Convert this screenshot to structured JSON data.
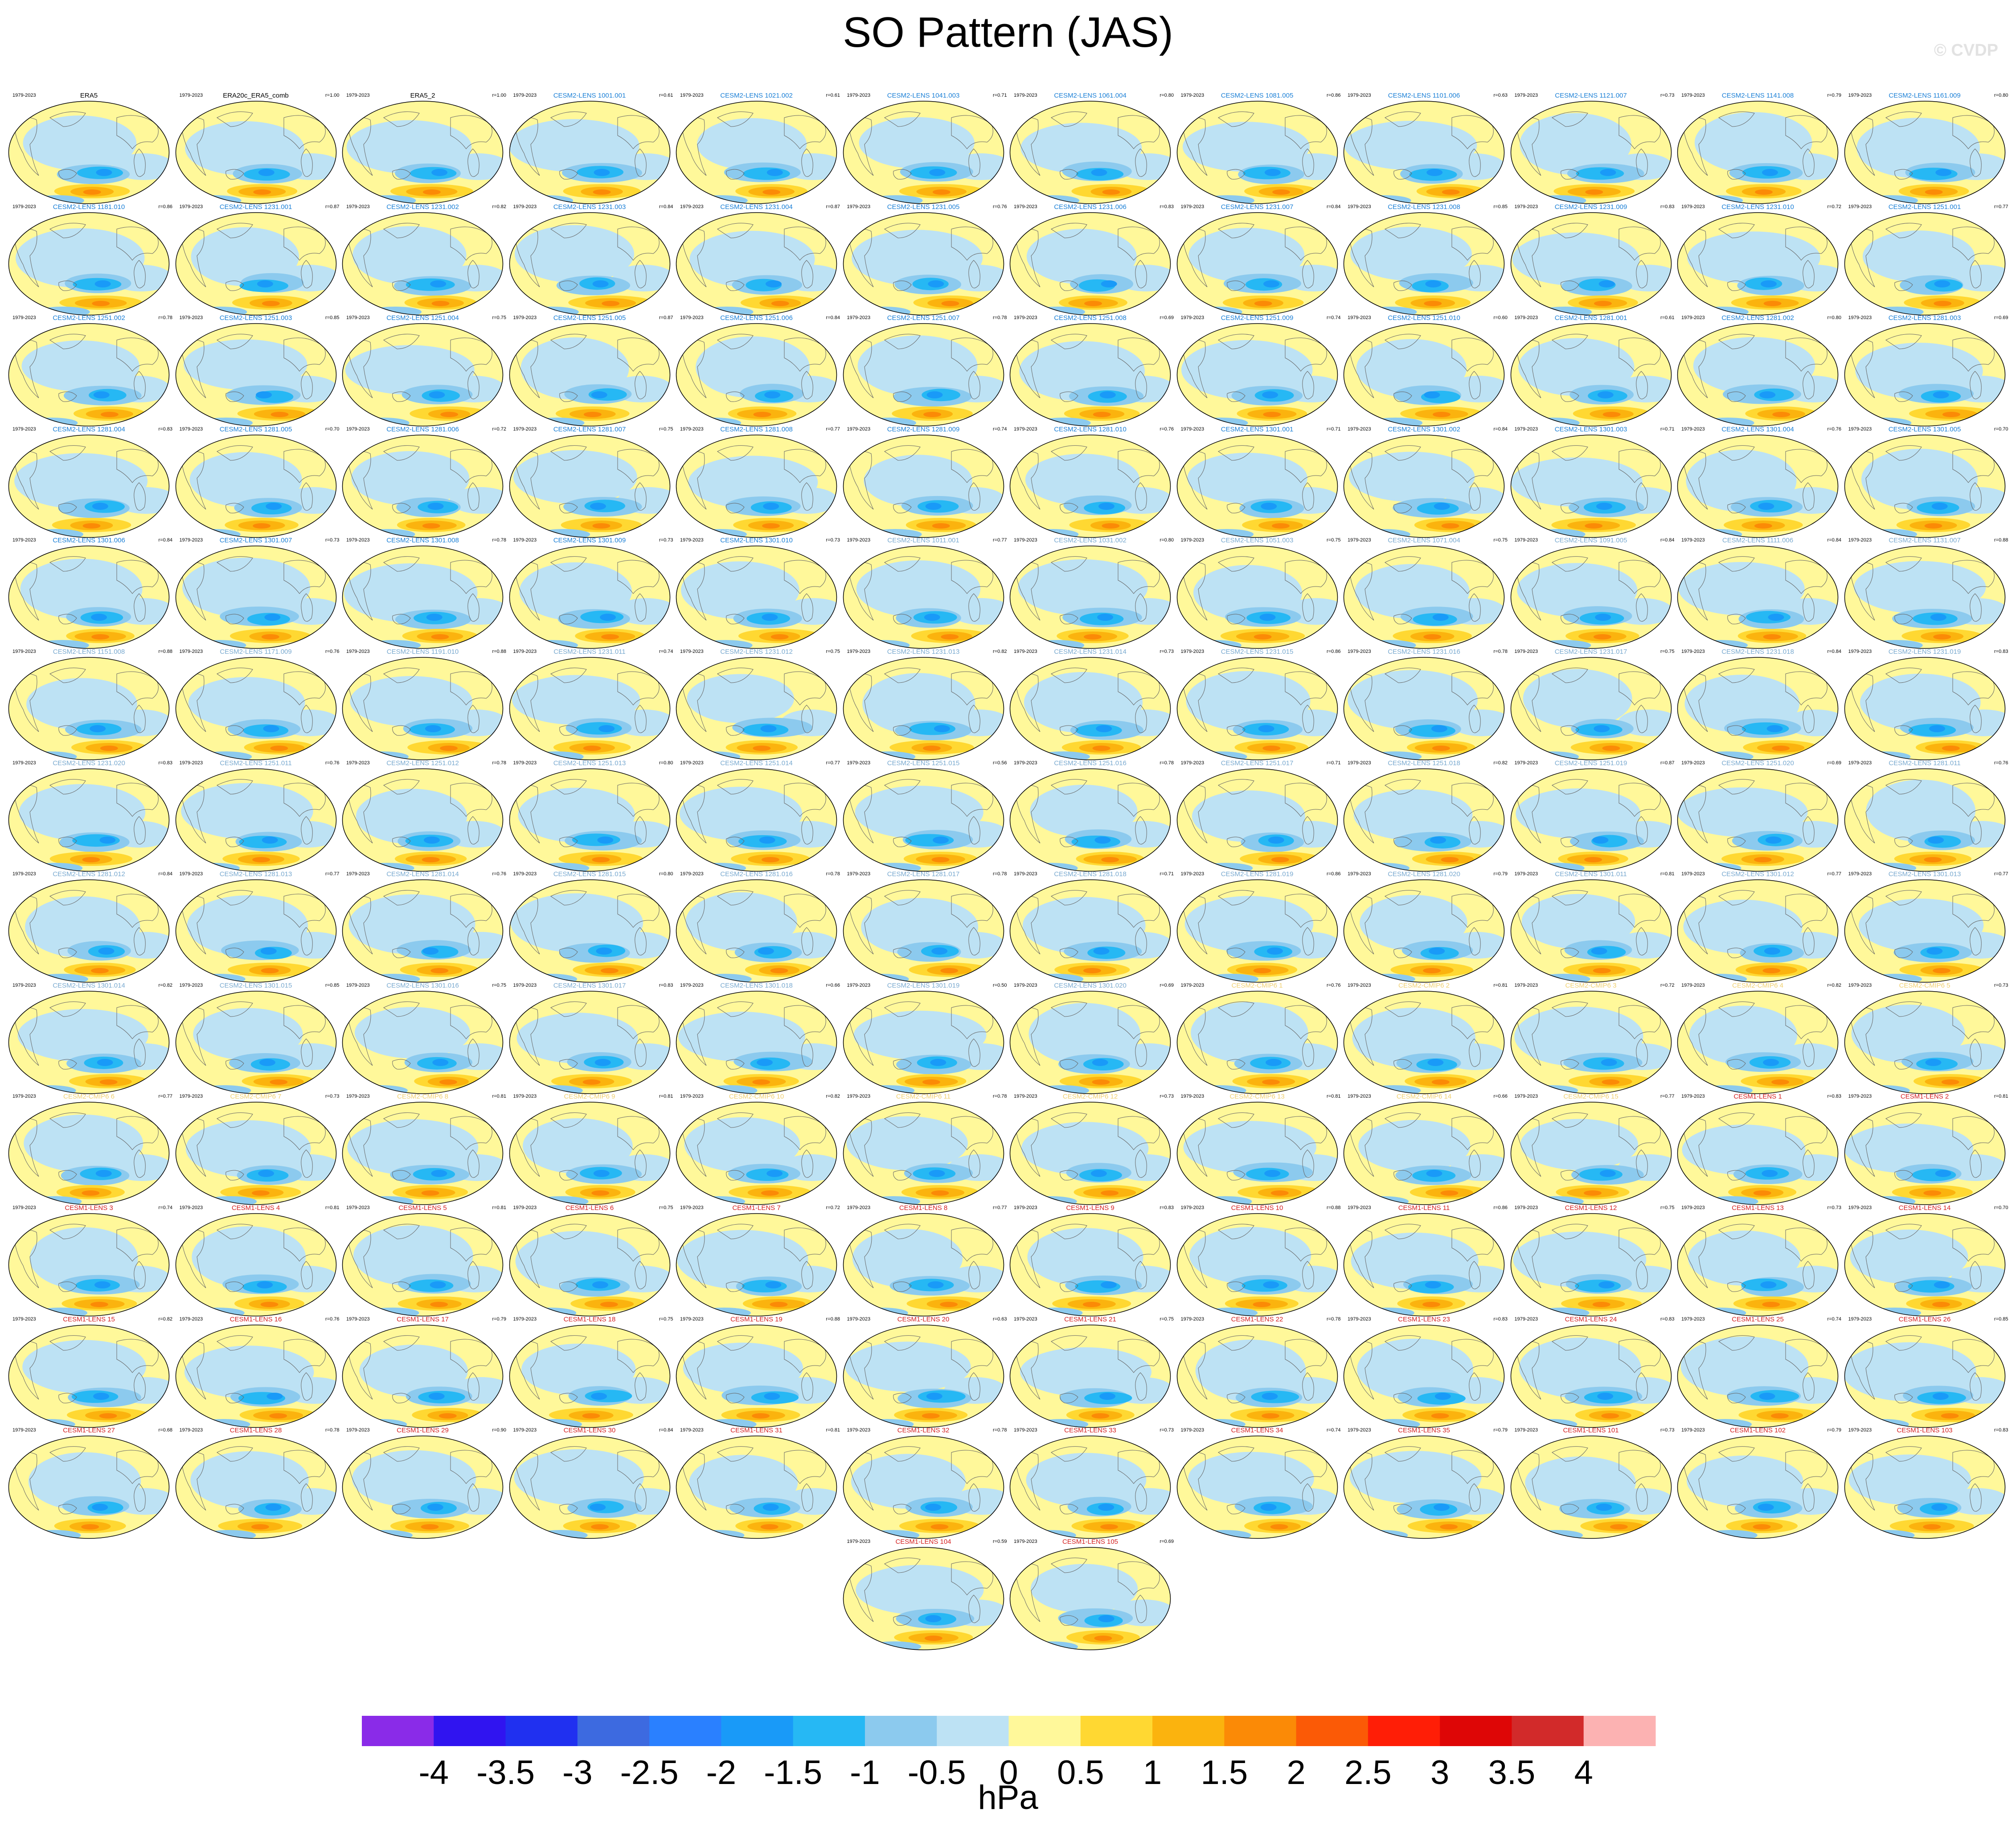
{
  "title": "SO Pattern (JAS)",
  "watermark": "© CVDP",
  "chart_data": {
    "type": "heatmap",
    "description_units": "hPa",
    "period_label": "1979-2023",
    "panels": [
      {
        "name": "ERA5",
        "group": "obs",
        "r": ""
      },
      {
        "name": "ERA20c_ERA5_comb",
        "group": "obs",
        "r": "r=1.00"
      },
      {
        "name": "ERA5_2",
        "group": "obs",
        "r": "r=1.00"
      },
      {
        "name": "CESM2-LENS 1001.001",
        "group": "cesm2",
        "r": "r=0.61"
      },
      {
        "name": "CESM2-LENS 1021.002",
        "group": "cesm2",
        "r": "r=0.61"
      },
      {
        "name": "CESM2-LENS 1041.003",
        "group": "cesm2",
        "r": "r=0.71"
      },
      {
        "name": "CESM2-LENS 1061.004",
        "group": "cesm2",
        "r": "r=0.80"
      },
      {
        "name": "CESM2-LENS 1081.005",
        "group": "cesm2",
        "r": "r=0.86"
      },
      {
        "name": "CESM2-LENS 1101.006",
        "group": "cesm2",
        "r": "r=0.63"
      },
      {
        "name": "CESM2-LENS 1121.007",
        "group": "cesm2",
        "r": "r=0.73"
      },
      {
        "name": "CESM2-LENS 1141.008",
        "group": "cesm2",
        "r": "r=0.79"
      },
      {
        "name": "CESM2-LENS 1161.009",
        "group": "cesm2",
        "r": "r=0.80"
      },
      {
        "name": "CESM2-LENS 1181.010",
        "group": "cesm2",
        "r": "r=0.86"
      },
      {
        "name": "CESM2-LENS 1231.001",
        "group": "cesm2",
        "r": "r=0.87"
      },
      {
        "name": "CESM2-LENS 1231.002",
        "group": "cesm2",
        "r": "r=0.82"
      },
      {
        "name": "CESM2-LENS 1231.003",
        "group": "cesm2",
        "r": "r=0.84"
      },
      {
        "name": "CESM2-LENS 1231.004",
        "group": "cesm2",
        "r": "r=0.87"
      },
      {
        "name": "CESM2-LENS 1231.005",
        "group": "cesm2",
        "r": "r=0.76"
      },
      {
        "name": "CESM2-LENS 1231.006",
        "group": "cesm2",
        "r": "r=0.83"
      },
      {
        "name": "CESM2-LENS 1231.007",
        "group": "cesm2",
        "r": "r=0.84"
      },
      {
        "name": "CESM2-LENS 1231.008",
        "group": "cesm2",
        "r": "r=0.85"
      },
      {
        "name": "CESM2-LENS 1231.009",
        "group": "cesm2",
        "r": "r=0.83"
      },
      {
        "name": "CESM2-LENS 1231.010",
        "group": "cesm2",
        "r": "r=0.72"
      },
      {
        "name": "CESM2-LENS 1251.001",
        "group": "cesm2",
        "r": "r=0.77"
      },
      {
        "name": "CESM2-LENS 1251.002",
        "group": "cesm2",
        "r": "r=0.78"
      },
      {
        "name": "CESM2-LENS 1251.003",
        "group": "cesm2",
        "r": "r=0.85"
      },
      {
        "name": "CESM2-LENS 1251.004",
        "group": "cesm2",
        "r": "r=0.75"
      },
      {
        "name": "CESM2-LENS 1251.005",
        "group": "cesm2",
        "r": "r=0.87"
      },
      {
        "name": "CESM2-LENS 1251.006",
        "group": "cesm2",
        "r": "r=0.84"
      },
      {
        "name": "CESM2-LENS 1251.007",
        "group": "cesm2",
        "r": "r=0.78"
      },
      {
        "name": "CESM2-LENS 1251.008",
        "group": "cesm2",
        "r": "r=0.69"
      },
      {
        "name": "CESM2-LENS 1251.009",
        "group": "cesm2",
        "r": "r=0.74"
      },
      {
        "name": "CESM2-LENS 1251.010",
        "group": "cesm2",
        "r": "r=0.60"
      },
      {
        "name": "CESM2-LENS 1281.001",
        "group": "cesm2",
        "r": "r=0.61"
      },
      {
        "name": "CESM2-LENS 1281.002",
        "group": "cesm2",
        "r": "r=0.80"
      },
      {
        "name": "CESM2-LENS 1281.003",
        "group": "cesm2",
        "r": "r=0.69"
      },
      {
        "name": "CESM2-LENS 1281.004",
        "group": "cesm2",
        "r": "r=0.83"
      },
      {
        "name": "CESM2-LENS 1281.005",
        "group": "cesm2",
        "r": "r=0.70"
      },
      {
        "name": "CESM2-LENS 1281.006",
        "group": "cesm2",
        "r": "r=0.72"
      },
      {
        "name": "CESM2-LENS 1281.007",
        "group": "cesm2",
        "r": "r=0.75"
      },
      {
        "name": "CESM2-LENS 1281.008",
        "group": "cesm2",
        "r": "r=0.77"
      },
      {
        "name": "CESM2-LENS 1281.009",
        "group": "cesm2",
        "r": "r=0.74"
      },
      {
        "name": "CESM2-LENS 1281.010",
        "group": "cesm2",
        "r": "r=0.76"
      },
      {
        "name": "CESM2-LENS 1301.001",
        "group": "cesm2",
        "r": "r=0.71"
      },
      {
        "name": "CESM2-LENS 1301.002",
        "group": "cesm2",
        "r": "r=0.84"
      },
      {
        "name": "CESM2-LENS 1301.003",
        "group": "cesm2",
        "r": "r=0.71"
      },
      {
        "name": "CESM2-LENS 1301.004",
        "group": "cesm2",
        "r": "r=0.76"
      },
      {
        "name": "CESM2-LENS 1301.005",
        "group": "cesm2",
        "r": "r=0.70"
      },
      {
        "name": "CESM2-LENS 1301.006",
        "group": "cesm2",
        "r": "r=0.84"
      },
      {
        "name": "CESM2-LENS 1301.007",
        "group": "cesm2",
        "r": "r=0.73"
      },
      {
        "name": "CESM2-LENS 1301.008",
        "group": "cesm2",
        "r": "r=0.78"
      },
      {
        "name": "CESM2-LENS 1301.009",
        "group": "cesm2",
        "r": "r=0.73"
      },
      {
        "name": "CESM2-LENS 1301.010",
        "group": "cesm2",
        "r": "r=0.73"
      },
      {
        "name": "CESM2-LENS 1011.001",
        "group": "cesm2b",
        "r": "r=0.77"
      },
      {
        "name": "CESM2-LENS 1031.002",
        "group": "cesm2b",
        "r": "r=0.80"
      },
      {
        "name": "CESM2-LENS 1051.003",
        "group": "cesm2b",
        "r": "r=0.75"
      },
      {
        "name": "CESM2-LENS 1071.004",
        "group": "cesm2b",
        "r": "r=0.75"
      },
      {
        "name": "CESM2-LENS 1091.005",
        "group": "cesm2b",
        "r": "r=0.84"
      },
      {
        "name": "CESM2-LENS 1111.006",
        "group": "cesm2b",
        "r": "r=0.84"
      },
      {
        "name": "CESM2-LENS 1131.007",
        "group": "cesm2b",
        "r": "r=0.88"
      },
      {
        "name": "CESM2-LENS 1151.008",
        "group": "cesm2b",
        "r": "r=0.88"
      },
      {
        "name": "CESM2-LENS 1171.009",
        "group": "cesm2b",
        "r": "r=0.76"
      },
      {
        "name": "CESM2-LENS 1191.010",
        "group": "cesm2b",
        "r": "r=0.88"
      },
      {
        "name": "CESM2-LENS 1231.011",
        "group": "cesm2b",
        "r": "r=0.74"
      },
      {
        "name": "CESM2-LENS 1231.012",
        "group": "cesm2b",
        "r": "r=0.75"
      },
      {
        "name": "CESM2-LENS 1231.013",
        "group": "cesm2b",
        "r": "r=0.82"
      },
      {
        "name": "CESM2-LENS 1231.014",
        "group": "cesm2b",
        "r": "r=0.73"
      },
      {
        "name": "CESM2-LENS 1231.015",
        "group": "cesm2b",
        "r": "r=0.86"
      },
      {
        "name": "CESM2-LENS 1231.016",
        "group": "cesm2b",
        "r": "r=0.78"
      },
      {
        "name": "CESM2-LENS 1231.017",
        "group": "cesm2b",
        "r": "r=0.75"
      },
      {
        "name": "CESM2-LENS 1231.018",
        "group": "cesm2b",
        "r": "r=0.84"
      },
      {
        "name": "CESM2-LENS 1231.019",
        "group": "cesm2b",
        "r": "r=0.83"
      },
      {
        "name": "CESM2-LENS 1231.020",
        "group": "cesm2b",
        "r": "r=0.83"
      },
      {
        "name": "CESM2-LENS 1251.011",
        "group": "cesm2b",
        "r": "r=0.76"
      },
      {
        "name": "CESM2-LENS 1251.012",
        "group": "cesm2b",
        "r": "r=0.78"
      },
      {
        "name": "CESM2-LENS 1251.013",
        "group": "cesm2b",
        "r": "r=0.80"
      },
      {
        "name": "CESM2-LENS 1251.014",
        "group": "cesm2b",
        "r": "r=0.77"
      },
      {
        "name": "CESM2-LENS 1251.015",
        "group": "cesm2b",
        "r": "r=0.56"
      },
      {
        "name": "CESM2-LENS 1251.016",
        "group": "cesm2b",
        "r": "r=0.78"
      },
      {
        "name": "CESM2-LENS 1251.017",
        "group": "cesm2b",
        "r": "r=0.71"
      },
      {
        "name": "CESM2-LENS 1251.018",
        "group": "cesm2b",
        "r": "r=0.82"
      },
      {
        "name": "CESM2-LENS 1251.019",
        "group": "cesm2b",
        "r": "r=0.87"
      },
      {
        "name": "CESM2-LENS 1251.020",
        "group": "cesm2b",
        "r": "r=0.69"
      },
      {
        "name": "CESM2-LENS 1281.011",
        "group": "cesm2b",
        "r": "r=0.76"
      },
      {
        "name": "CESM2-LENS 1281.012",
        "group": "cesm2b",
        "r": "r=0.84"
      },
      {
        "name": "CESM2-LENS 1281.013",
        "group": "cesm2b",
        "r": "r=0.77"
      },
      {
        "name": "CESM2-LENS 1281.014",
        "group": "cesm2b",
        "r": "r=0.76"
      },
      {
        "name": "CESM2-LENS 1281.015",
        "group": "cesm2b",
        "r": "r=0.80"
      },
      {
        "name": "CESM2-LENS 1281.016",
        "group": "cesm2b",
        "r": "r=0.78"
      },
      {
        "name": "CESM2-LENS 1281.017",
        "group": "cesm2b",
        "r": "r=0.78"
      },
      {
        "name": "CESM2-LENS 1281.018",
        "group": "cesm2b",
        "r": "r=0.71"
      },
      {
        "name": "CESM2-LENS 1281.019",
        "group": "cesm2b",
        "r": "r=0.86"
      },
      {
        "name": "CESM2-LENS 1281.020",
        "group": "cesm2b",
        "r": "r=0.79"
      },
      {
        "name": "CESM2-LENS 1301.011",
        "group": "cesm2b",
        "r": "r=0.81"
      },
      {
        "name": "CESM2-LENS 1301.012",
        "group": "cesm2b",
        "r": "r=0.77"
      },
      {
        "name": "CESM2-LENS 1301.013",
        "group": "cesm2b",
        "r": "r=0.77"
      },
      {
        "name": "CESM2-LENS 1301.014",
        "group": "cesm2b",
        "r": "r=0.82"
      },
      {
        "name": "CESM2-LENS 1301.015",
        "group": "cesm2b",
        "r": "r=0.85"
      },
      {
        "name": "CESM2-LENS 1301.016",
        "group": "cesm2b",
        "r": "r=0.75"
      },
      {
        "name": "CESM2-LENS 1301.017",
        "group": "cesm2b",
        "r": "r=0.83"
      },
      {
        "name": "CESM2-LENS 1301.018",
        "group": "cesm2b",
        "r": "r=0.66"
      },
      {
        "name": "CESM2-LENS 1301.019",
        "group": "cesm2b",
        "r": "r=0.50"
      },
      {
        "name": "CESM2-LENS 1301.020",
        "group": "cesm2b",
        "r": "r=0.69"
      },
      {
        "name": "CESM2-CMIP6 1",
        "group": "cmip6",
        "r": "r=0.76"
      },
      {
        "name": "CESM2-CMIP6 2",
        "group": "cmip6",
        "r": "r=0.81"
      },
      {
        "name": "CESM2-CMIP6 3",
        "group": "cmip6",
        "r": "r=0.72"
      },
      {
        "name": "CESM2-CMIP6 4",
        "group": "cmip6",
        "r": "r=0.82"
      },
      {
        "name": "CESM2-CMIP6 5",
        "group": "cmip6",
        "r": "r=0.73"
      },
      {
        "name": "CESM2-CMIP6 6",
        "group": "cmip6",
        "r": "r=0.77"
      },
      {
        "name": "CESM2-CMIP6 7",
        "group": "cmip6",
        "r": "r=0.73"
      },
      {
        "name": "CESM2-CMIP6 8",
        "group": "cmip6",
        "r": "r=0.81"
      },
      {
        "name": "CESM2-CMIP6 9",
        "group": "cmip6",
        "r": "r=0.81"
      },
      {
        "name": "CESM2-CMIP6 10",
        "group": "cmip6",
        "r": "r=0.82"
      },
      {
        "name": "CESM2-CMIP6 11",
        "group": "cmip6",
        "r": "r=0.78"
      },
      {
        "name": "CESM2-CMIP6 12",
        "group": "cmip6",
        "r": "r=0.73"
      },
      {
        "name": "CESM2-CMIP6 13",
        "group": "cmip6",
        "r": "r=0.81"
      },
      {
        "name": "CESM2-CMIP6 14",
        "group": "cmip6",
        "r": "r=0.66"
      },
      {
        "name": "CESM2-CMIP6 15",
        "group": "cmip6",
        "r": "r=0.77"
      },
      {
        "name": "CESM1-LENS 1",
        "group": "cesm1",
        "r": "r=0.83"
      },
      {
        "name": "CESM1-LENS 2",
        "group": "cesm1",
        "r": "r=0.81"
      },
      {
        "name": "CESM1-LENS 3",
        "group": "cesm1",
        "r": "r=0.74"
      },
      {
        "name": "CESM1-LENS 4",
        "group": "cesm1",
        "r": "r=0.81"
      },
      {
        "name": "CESM1-LENS 5",
        "group": "cesm1",
        "r": "r=0.81"
      },
      {
        "name": "CESM1-LENS 6",
        "group": "cesm1",
        "r": "r=0.75"
      },
      {
        "name": "CESM1-LENS 7",
        "group": "cesm1",
        "r": "r=0.72"
      },
      {
        "name": "CESM1-LENS 8",
        "group": "cesm1",
        "r": "r=0.77"
      },
      {
        "name": "CESM1-LENS 9",
        "group": "cesm1",
        "r": "r=0.83"
      },
      {
        "name": "CESM1-LENS 10",
        "group": "cesm1",
        "r": "r=0.88"
      },
      {
        "name": "CESM1-LENS 11",
        "group": "cesm1",
        "r": "r=0.86"
      },
      {
        "name": "CESM1-LENS 12",
        "group": "cesm1",
        "r": "r=0.75"
      },
      {
        "name": "CESM1-LENS 13",
        "group": "cesm1",
        "r": "r=0.73"
      },
      {
        "name": "CESM1-LENS 14",
        "group": "cesm1",
        "r": "r=0.70"
      },
      {
        "name": "CESM1-LENS 15",
        "group": "cesm1",
        "r": "r=0.82"
      },
      {
        "name": "CESM1-LENS 16",
        "group": "cesm1",
        "r": "r=0.76"
      },
      {
        "name": "CESM1-LENS 17",
        "group": "cesm1",
        "r": "r=0.79"
      },
      {
        "name": "CESM1-LENS 18",
        "group": "cesm1",
        "r": "r=0.75"
      },
      {
        "name": "CESM1-LENS 19",
        "group": "cesm1",
        "r": "r=0.88"
      },
      {
        "name": "CESM1-LENS 20",
        "group": "cesm1",
        "r": "r=0.63"
      },
      {
        "name": "CESM1-LENS 21",
        "group": "cesm1",
        "r": "r=0.75"
      },
      {
        "name": "CESM1-LENS 22",
        "group": "cesm1",
        "r": "r=0.78"
      },
      {
        "name": "CESM1-LENS 23",
        "group": "cesm1",
        "r": "r=0.83"
      },
      {
        "name": "CESM1-LENS 24",
        "group": "cesm1",
        "r": "r=0.83"
      },
      {
        "name": "CESM1-LENS 25",
        "group": "cesm1",
        "r": "r=0.74"
      },
      {
        "name": "CESM1-LENS 26",
        "group": "cesm1",
        "r": "r=0.85"
      },
      {
        "name": "CESM1-LENS 27",
        "group": "cesm1",
        "r": "r=0.68"
      },
      {
        "name": "CESM1-LENS 28",
        "group": "cesm1",
        "r": "r=0.78"
      },
      {
        "name": "CESM1-LENS 29",
        "group": "cesm1",
        "r": "r=0.90"
      },
      {
        "name": "CESM1-LENS 30",
        "group": "cesm1",
        "r": "r=0.84"
      },
      {
        "name": "CESM1-LENS 31",
        "group": "cesm1",
        "r": "r=0.81"
      },
      {
        "name": "CESM1-LENS 32",
        "group": "cesm1",
        "r": "r=0.78"
      },
      {
        "name": "CESM1-LENS 33",
        "group": "cesm1",
        "r": "r=0.73"
      },
      {
        "name": "CESM1-LENS 34",
        "group": "cesm1",
        "r": "r=0.74"
      },
      {
        "name": "CESM1-LENS 35",
        "group": "cesm1",
        "r": "r=0.79"
      },
      {
        "name": "CESM1-LENS 101",
        "group": "cesm1",
        "r": "r=0.73"
      },
      {
        "name": "CESM1-LENS 102",
        "group": "cesm1",
        "r": "r=0.79"
      },
      {
        "name": "CESM1-LENS 103",
        "group": "cesm1",
        "r": "r=0.83"
      },
      {
        "name": "CESM1-LENS 104",
        "group": "cesm1",
        "r": "r=0.59"
      },
      {
        "name": "CESM1-LENS 105",
        "group": "cesm1",
        "r": "r=0.69"
      }
    ],
    "group_colors": {
      "obs": "#000000",
      "cesm2": "#1a7fd6",
      "cesm2b": "#7aaad0",
      "cmip6": "#f0d070",
      "cesm1": "#d42020"
    },
    "colorbar": {
      "levels": [
        -4,
        -3.5,
        -3,
        -2.5,
        -2,
        -1.5,
        -1,
        -0.5,
        0,
        0.5,
        1,
        1.5,
        2,
        2.5,
        3,
        3.5,
        4
      ],
      "tick_labels": [
        "-4",
        "-3.5",
        "-3",
        "-2.5",
        "-2",
        "-1.5",
        "-1",
        "-0.5",
        "0",
        "0.5",
        "1",
        "1.5",
        "2",
        "2.5",
        "3",
        "3.5",
        "4"
      ],
      "colors": [
        "#8a2be8",
        "#3014f0",
        "#2030f0",
        "#3d6ae0",
        "#2a80ff",
        "#199af8",
        "#26b8f4",
        "#8ccaee",
        "#bde2f4",
        "#fff89a",
        "#ffd832",
        "#fbb30e",
        "#fb8a06",
        "#fb5a06",
        "#ff1e06",
        "#de0606",
        "#d22a2a",
        "#fcb2b2"
      ],
      "units": "hPa"
    }
  }
}
